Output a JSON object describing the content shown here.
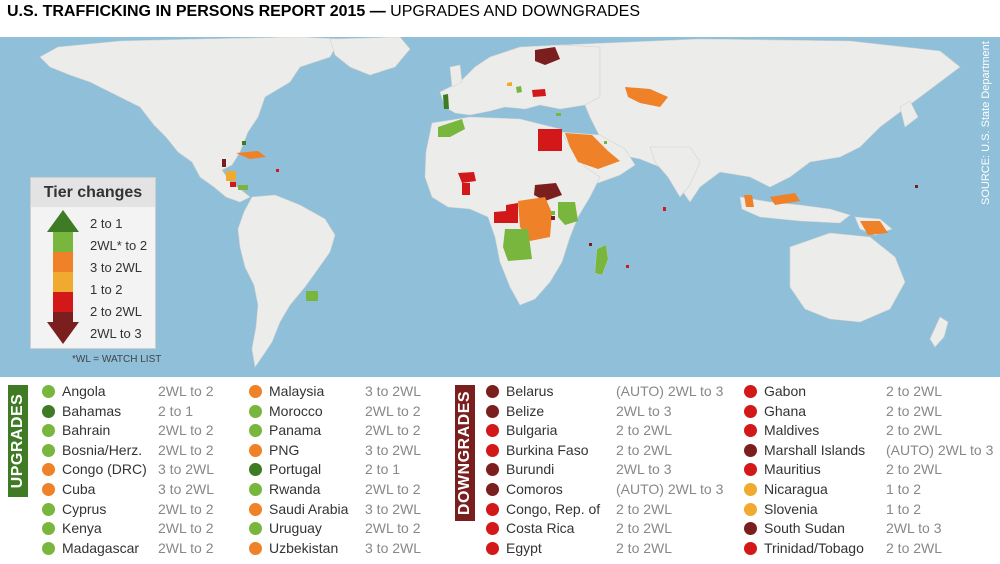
{
  "title": {
    "bold": "U.S. TRAFFICKING IN PERSONS REPORT 2015 —",
    "thin": " UPGRADES AND DOWNGRADES"
  },
  "source": "SOURCE: U.S. State Department",
  "colors": {
    "dark_green": "#3f7a24",
    "light_green": "#79b63d",
    "orange": "#ef8129",
    "yellow": "#f1aa30",
    "red": "#d21818",
    "dark_red": "#7b1e1e",
    "ocean": "#8fbfd9",
    "land": "#ececea",
    "upgrades_tab": "#3f7a24",
    "downgrades_tab": "#7b1e1e"
  },
  "legend": {
    "title": "Tier changes",
    "items": [
      {
        "label": "2 to 1",
        "color": "dark_green"
      },
      {
        "label": "2WL* to 2",
        "color": "light_green"
      },
      {
        "label": "3 to 2WL",
        "color": "orange"
      },
      {
        "label": "1 to 2",
        "color": "yellow"
      },
      {
        "label": "2 to 2WL",
        "color": "red"
      },
      {
        "label": "2WL to 3",
        "color": "dark_red"
      }
    ],
    "note": "*WL = WATCH LIST"
  },
  "upgrades_label": "UPGRADES",
  "downgrades_label": "DOWNGRADES",
  "upgrades": [
    [
      {
        "name": "Angola",
        "change": "2WL to 2",
        "color": "light_green"
      },
      {
        "name": "Bahamas",
        "change": "2 to 1",
        "color": "dark_green"
      },
      {
        "name": "Bahrain",
        "change": "2WL to 2",
        "color": "light_green"
      },
      {
        "name": "Bosnia/Herz.",
        "change": "2WL to 2",
        "color": "light_green"
      },
      {
        "name": "Congo (DRC)",
        "change": "3 to 2WL",
        "color": "orange"
      },
      {
        "name": "Cuba",
        "change": "3 to 2WL",
        "color": "orange"
      },
      {
        "name": "Cyprus",
        "change": "2WL to 2",
        "color": "light_green"
      },
      {
        "name": "Kenya",
        "change": "2WL to 2",
        "color": "light_green"
      },
      {
        "name": "Madagascar",
        "change": "2WL to 2",
        "color": "light_green"
      }
    ],
    [
      {
        "name": "Malaysia",
        "change": "3 to 2WL",
        "color": "orange"
      },
      {
        "name": "Morocco",
        "change": "2WL to 2",
        "color": "light_green"
      },
      {
        "name": "Panama",
        "change": "2WL to 2",
        "color": "light_green"
      },
      {
        "name": "PNG",
        "change": "3 to 2WL",
        "color": "orange"
      },
      {
        "name": "Portugal",
        "change": "2 to 1",
        "color": "dark_green"
      },
      {
        "name": "Rwanda",
        "change": "2WL to 2",
        "color": "light_green"
      },
      {
        "name": "Saudi Arabia",
        "change": "3 to 2WL",
        "color": "orange"
      },
      {
        "name": "Uruguay",
        "change": "2WL to 2",
        "color": "light_green"
      },
      {
        "name": "Uzbekistan",
        "change": "3 to 2WL",
        "color": "orange"
      }
    ]
  ],
  "downgrades": [
    [
      {
        "name": "Belarus",
        "change": "(AUTO) 2WL to 3",
        "color": "dark_red"
      },
      {
        "name": "Belize",
        "change": "2WL to 3",
        "color": "dark_red"
      },
      {
        "name": "Bulgaria",
        "change": "2 to 2WL",
        "color": "red"
      },
      {
        "name": "Burkina Faso",
        "change": "2 to 2WL",
        "color": "red"
      },
      {
        "name": "Burundi",
        "change": "2WL to 3",
        "color": "dark_red"
      },
      {
        "name": "Comoros",
        "change": "(AUTO) 2WL to 3",
        "color": "dark_red"
      },
      {
        "name": "Congo, Rep. of",
        "change": "2 to 2WL",
        "color": "red"
      },
      {
        "name": "Costa Rica",
        "change": "2 to 2WL",
        "color": "red"
      },
      {
        "name": "Egypt",
        "change": "2 to 2WL",
        "color": "red"
      }
    ],
    [
      {
        "name": "Gabon",
        "change": "2 to 2WL",
        "color": "red"
      },
      {
        "name": "Ghana",
        "change": "2 to 2WL",
        "color": "red"
      },
      {
        "name": "Maldives",
        "change": "2 to 2WL",
        "color": "red"
      },
      {
        "name": "Marshall Islands",
        "change": "(AUTO) 2WL to 3",
        "color": "dark_red"
      },
      {
        "name": "Mauritius",
        "change": "2 to 2WL",
        "color": "red"
      },
      {
        "name": "Nicaragua",
        "change": "1 to 2",
        "color": "yellow"
      },
      {
        "name": "Slovenia",
        "change": "1 to 2",
        "color": "yellow"
      },
      {
        "name": "South Sudan",
        "change": "2WL to 3",
        "color": "dark_red"
      },
      {
        "name": "Trinidad/Tobago",
        "change": "2 to 2WL",
        "color": "red"
      }
    ]
  ]
}
